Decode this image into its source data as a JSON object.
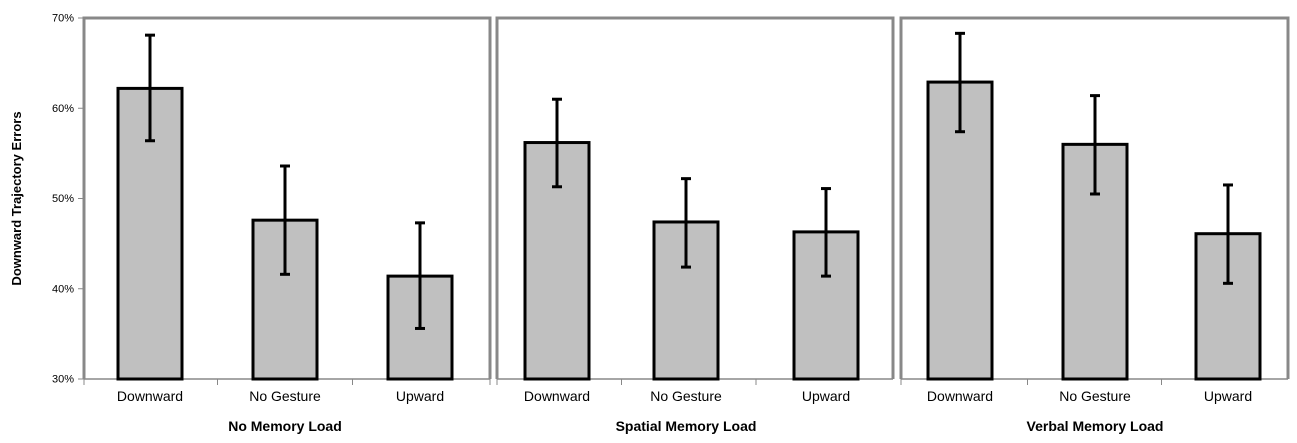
{
  "chart_data": {
    "type": "bar",
    "ylabel": "Downward Trajectory Errors",
    "ylim": [
      30,
      70
    ],
    "yticks": [
      30,
      40,
      50,
      60,
      70
    ],
    "ytick_labels": [
      "30%",
      "40%",
      "50%",
      "60%",
      "70%"
    ],
    "bar_color": "#c0c0c0",
    "outline_color": "#000000",
    "frame_color": "#888888",
    "panels": [
      {
        "title": "No Memory Load",
        "categories": [
          "Downward",
          "No Gesture",
          "Upward"
        ],
        "values": [
          62.2,
          47.6,
          41.4
        ],
        "error_low": [
          56.4,
          41.6,
          35.6
        ],
        "error_high": [
          68.1,
          53.6,
          47.3
        ]
      },
      {
        "title": "Spatial Memory Load",
        "categories": [
          "Downward",
          "No Gesture",
          "Upward"
        ],
        "values": [
          56.2,
          47.4,
          46.3
        ],
        "error_low": [
          51.3,
          42.4,
          41.4
        ],
        "error_high": [
          61.0,
          52.2,
          51.1
        ]
      },
      {
        "title": "Verbal Memory Load",
        "categories": [
          "Downward",
          "No Gesture",
          "Upward"
        ],
        "values": [
          62.9,
          56.0,
          46.1
        ],
        "error_low": [
          57.4,
          50.5,
          40.6
        ],
        "error_high": [
          68.3,
          61.4,
          51.5
        ]
      }
    ]
  }
}
